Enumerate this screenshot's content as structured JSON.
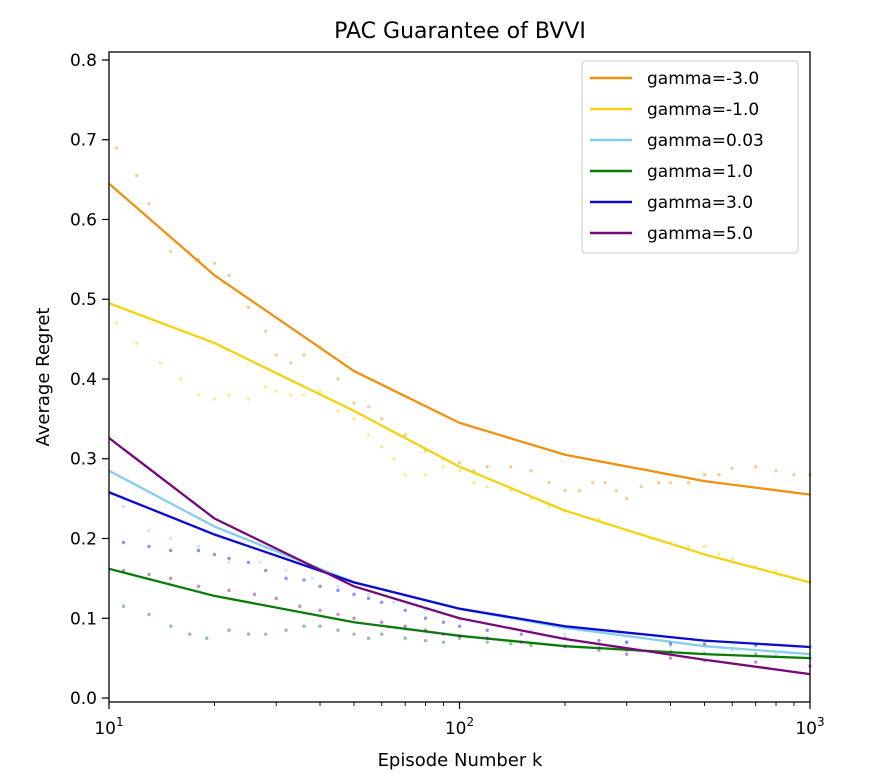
{
  "chart_data": {
    "type": "line",
    "title": "PAC Guarantee of BVVI",
    "xlabel": "Episode Number k",
    "ylabel": "Average Regret",
    "xscale": "log",
    "xlim": [
      10,
      1000
    ],
    "ylim": [
      -0.005,
      0.81
    ],
    "x_ticks": [
      {
        "value": 10,
        "base": "10",
        "exp": "1"
      },
      {
        "value": 100,
        "base": "10",
        "exp": "2"
      },
      {
        "value": 1000,
        "base": "10",
        "exp": "3"
      }
    ],
    "y_ticks": [
      {
        "value": 0.0,
        "label": "0.0"
      },
      {
        "value": 0.1,
        "label": "0.1"
      },
      {
        "value": 0.2,
        "label": "0.2"
      },
      {
        "value": 0.3,
        "label": "0.3"
      },
      {
        "value": 0.4,
        "label": "0.4"
      },
      {
        "value": 0.5,
        "label": "0.5"
      },
      {
        "value": 0.6,
        "label": "0.6"
      },
      {
        "value": 0.7,
        "label": "0.7"
      },
      {
        "value": 0.8,
        "label": "0.8"
      }
    ],
    "legend_position": "top-right",
    "grid": false,
    "series": [
      {
        "name": "gamma=-3.0",
        "color": "#f0900f",
        "fit": [
          [
            10,
            0.645
          ],
          [
            20,
            0.53
          ],
          [
            50,
            0.41
          ],
          [
            100,
            0.345
          ],
          [
            200,
            0.305
          ],
          [
            500,
            0.272
          ],
          [
            1000,
            0.255
          ]
        ],
        "observed": [
          [
            10.5,
            0.69
          ],
          [
            12,
            0.655
          ],
          [
            13,
            0.62
          ],
          [
            15,
            0.56
          ],
          [
            18,
            0.55
          ],
          [
            20,
            0.545
          ],
          [
            22,
            0.53
          ],
          [
            25,
            0.49
          ],
          [
            28,
            0.46
          ],
          [
            30,
            0.43
          ],
          [
            33,
            0.42
          ],
          [
            36,
            0.43
          ],
          [
            40,
            0.44
          ],
          [
            45,
            0.4
          ],
          [
            50,
            0.37
          ],
          [
            55,
            0.365
          ],
          [
            60,
            0.35
          ],
          [
            70,
            0.33
          ],
          [
            80,
            0.31
          ],
          [
            90,
            0.3
          ],
          [
            100,
            0.295
          ],
          [
            110,
            0.285
          ],
          [
            120,
            0.29
          ],
          [
            140,
            0.29
          ],
          [
            160,
            0.285
          ],
          [
            180,
            0.27
          ],
          [
            200,
            0.26
          ],
          [
            220,
            0.26
          ],
          [
            240,
            0.27
          ],
          [
            260,
            0.27
          ],
          [
            280,
            0.26
          ],
          [
            300,
            0.25
          ],
          [
            330,
            0.265
          ],
          [
            370,
            0.27
          ],
          [
            400,
            0.27
          ],
          [
            450,
            0.27
          ],
          [
            500,
            0.28
          ],
          [
            550,
            0.28
          ],
          [
            600,
            0.288
          ],
          [
            700,
            0.29
          ],
          [
            800,
            0.285
          ],
          [
            900,
            0.28
          ],
          [
            1000,
            0.28
          ]
        ]
      },
      {
        "name": "gamma=-1.0",
        "color": "#f5d210",
        "fit": [
          [
            10,
            0.495
          ],
          [
            20,
            0.445
          ],
          [
            50,
            0.36
          ],
          [
            100,
            0.29
          ],
          [
            200,
            0.235
          ],
          [
            500,
            0.18
          ],
          [
            1000,
            0.145
          ]
        ],
        "observed": [
          [
            10.5,
            0.47
          ],
          [
            12,
            0.445
          ],
          [
            14,
            0.42
          ],
          [
            16,
            0.4
          ],
          [
            18,
            0.38
          ],
          [
            20,
            0.375
          ],
          [
            22,
            0.38
          ],
          [
            25,
            0.375
          ],
          [
            28,
            0.39
          ],
          [
            30,
            0.385
          ],
          [
            33,
            0.38
          ],
          [
            36,
            0.38
          ],
          [
            40,
            0.385
          ],
          [
            45,
            0.36
          ],
          [
            50,
            0.35
          ],
          [
            55,
            0.33
          ],
          [
            60,
            0.315
          ],
          [
            65,
            0.3
          ],
          [
            70,
            0.28
          ],
          [
            80,
            0.28
          ],
          [
            90,
            0.29
          ],
          [
            100,
            0.285
          ],
          [
            110,
            0.27
          ],
          [
            120,
            0.265
          ],
          [
            140,
            0.26
          ],
          [
            160,
            0.25
          ],
          [
            180,
            0.24
          ],
          [
            200,
            0.235
          ],
          [
            250,
            0.225
          ],
          [
            300,
            0.21
          ],
          [
            350,
            0.2
          ],
          [
            400,
            0.195
          ],
          [
            450,
            0.19
          ],
          [
            500,
            0.19
          ],
          [
            550,
            0.18
          ],
          [
            600,
            0.175
          ],
          [
            700,
            0.165
          ],
          [
            800,
            0.16
          ],
          [
            900,
            0.15
          ],
          [
            1000,
            0.145
          ]
        ]
      },
      {
        "name": "gamma=0.03",
        "color": "#87ceeb",
        "fit": [
          [
            10,
            0.285
          ],
          [
            20,
            0.215
          ],
          [
            50,
            0.145
          ],
          [
            100,
            0.112
          ],
          [
            200,
            0.088
          ],
          [
            500,
            0.065
          ],
          [
            1000,
            0.055
          ]
        ],
        "observed": [
          [
            11,
            0.24
          ],
          [
            13,
            0.21
          ],
          [
            15,
            0.2
          ],
          [
            18,
            0.19
          ],
          [
            22,
            0.17
          ],
          [
            27,
            0.17
          ],
          [
            32,
            0.16
          ],
          [
            38,
            0.15
          ],
          [
            45,
            0.14
          ],
          [
            55,
            0.13
          ],
          [
            65,
            0.12
          ],
          [
            80,
            0.11
          ],
          [
            100,
            0.1
          ],
          [
            130,
            0.09
          ],
          [
            160,
            0.085
          ],
          [
            200,
            0.08
          ],
          [
            300,
            0.07
          ],
          [
            400,
            0.065
          ],
          [
            600,
            0.06
          ],
          [
            800,
            0.055
          ],
          [
            1000,
            0.055
          ]
        ]
      },
      {
        "name": "gamma=1.0",
        "color": "#0a7a0a",
        "fit": [
          [
            10,
            0.162
          ],
          [
            20,
            0.128
          ],
          [
            50,
            0.095
          ],
          [
            100,
            0.078
          ],
          [
            200,
            0.065
          ],
          [
            500,
            0.055
          ],
          [
            1000,
            0.05
          ]
        ],
        "observed": [
          [
            11,
            0.115
          ],
          [
            13,
            0.105
          ],
          [
            15,
            0.09
          ],
          [
            17,
            0.08
          ],
          [
            19,
            0.075
          ],
          [
            22,
            0.085
          ],
          [
            25,
            0.08
          ],
          [
            28,
            0.08
          ],
          [
            32,
            0.085
          ],
          [
            36,
            0.09
          ],
          [
            40,
            0.09
          ],
          [
            45,
            0.085
          ],
          [
            50,
            0.08
          ],
          [
            55,
            0.075
          ],
          [
            60,
            0.08
          ],
          [
            70,
            0.075
          ],
          [
            80,
            0.072
          ],
          [
            90,
            0.07
          ],
          [
            100,
            0.075
          ],
          [
            120,
            0.07
          ],
          [
            140,
            0.068
          ],
          [
            160,
            0.066
          ],
          [
            200,
            0.065
          ],
          [
            250,
            0.063
          ],
          [
            300,
            0.06
          ],
          [
            400,
            0.058
          ],
          [
            500,
            0.056
          ],
          [
            700,
            0.055
          ],
          [
            1000,
            0.05
          ]
        ]
      },
      {
        "name": "gamma=3.0",
        "color": "#0a0ad0",
        "fit": [
          [
            10,
            0.258
          ],
          [
            20,
            0.205
          ],
          [
            50,
            0.145
          ],
          [
            100,
            0.112
          ],
          [
            200,
            0.09
          ],
          [
            500,
            0.072
          ],
          [
            1000,
            0.064
          ]
        ],
        "observed": [
          [
            11,
            0.195
          ],
          [
            13,
            0.19
          ],
          [
            15,
            0.185
          ],
          [
            18,
            0.185
          ],
          [
            20,
            0.18
          ],
          [
            22,
            0.175
          ],
          [
            25,
            0.17
          ],
          [
            28,
            0.16
          ],
          [
            32,
            0.15
          ],
          [
            36,
            0.148
          ],
          [
            40,
            0.14
          ],
          [
            45,
            0.135
          ],
          [
            50,
            0.13
          ],
          [
            55,
            0.125
          ],
          [
            60,
            0.12
          ],
          [
            70,
            0.11
          ],
          [
            80,
            0.1
          ],
          [
            90,
            0.095
          ],
          [
            100,
            0.09
          ],
          [
            120,
            0.085
          ],
          [
            150,
            0.08
          ],
          [
            200,
            0.075
          ],
          [
            250,
            0.072
          ],
          [
            300,
            0.07
          ],
          [
            400,
            0.068
          ],
          [
            500,
            0.068
          ],
          [
            700,
            0.066
          ],
          [
            1000,
            0.064
          ]
        ]
      },
      {
        "name": "gamma=5.0",
        "color": "#76087a",
        "fit": [
          [
            10,
            0.326
          ],
          [
            20,
            0.225
          ],
          [
            50,
            0.14
          ],
          [
            100,
            0.1
          ],
          [
            200,
            0.074
          ],
          [
            500,
            0.048
          ],
          [
            1000,
            0.03
          ]
        ],
        "observed": [
          [
            11,
            0.16
          ],
          [
            13,
            0.155
          ],
          [
            15,
            0.15
          ],
          [
            18,
            0.14
          ],
          [
            22,
            0.135
          ],
          [
            26,
            0.13
          ],
          [
            30,
            0.125
          ],
          [
            35,
            0.115
          ],
          [
            40,
            0.11
          ],
          [
            45,
            0.105
          ],
          [
            50,
            0.1
          ],
          [
            60,
            0.095
          ],
          [
            70,
            0.09
          ],
          [
            80,
            0.085
          ],
          [
            90,
            0.08
          ],
          [
            100,
            0.078
          ],
          [
            120,
            0.075
          ],
          [
            150,
            0.07
          ],
          [
            200,
            0.065
          ],
          [
            250,
            0.06
          ],
          [
            300,
            0.055
          ],
          [
            400,
            0.05
          ],
          [
            500,
            0.047
          ],
          [
            700,
            0.045
          ],
          [
            1000,
            0.04
          ]
        ]
      }
    ]
  }
}
